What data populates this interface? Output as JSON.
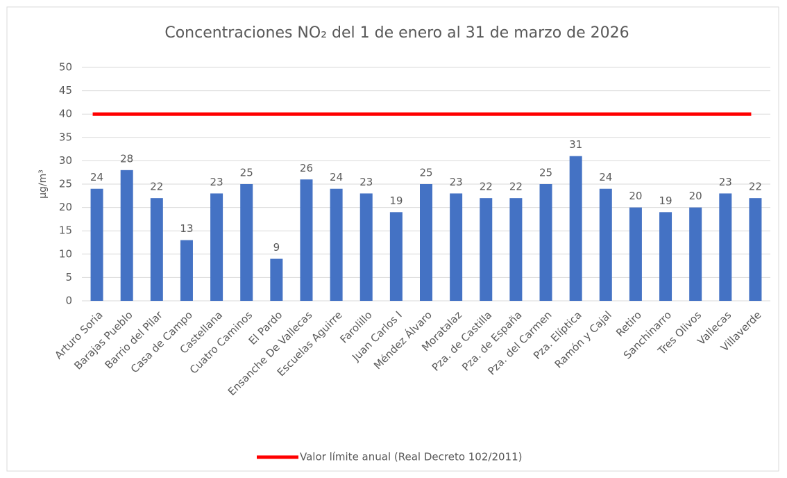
{
  "chart_data": {
    "type": "bar",
    "title": "Concentraciones NO₂ del 1 de enero al 31 de marzo de 2026",
    "y_label": "µg/m³",
    "categories": [
      "Arturo Soria",
      "Barajas Pueblo",
      "Barrio del Pilar",
      "Casa de Campo",
      "Castellana",
      "Cuatro Caminos",
      "El Pardo",
      "Ensanche De Vallecas",
      "Escuelas Aguirre",
      "Farolillo",
      "Juan Carlos I",
      "Méndez Álvaro",
      "Moratalaz",
      "Pza. de Castilla",
      "Pza. de España",
      "Pza. del Carmen",
      "Pza. Elíptica",
      "Ramón y Cajal",
      "Retiro",
      "Sanchinarro",
      "Tres Olivos",
      "Vallecas",
      "Villaverde"
    ],
    "values": [
      24,
      28,
      22,
      13,
      23,
      25,
      9,
      26,
      24,
      23,
      19,
      25,
      23,
      22,
      22,
      25,
      31,
      24,
      20,
      19,
      20,
      23,
      22
    ],
    "color": "#4472c4",
    "reference_line": {
      "name": "Valor límite anual (Real Decreto 102/2011)",
      "value": 40,
      "color": "#ff0000"
    },
    "ylim": [
      0,
      50
    ],
    "yticks": [
      0,
      5,
      10,
      15,
      20,
      25,
      30,
      35,
      40,
      45,
      50
    ],
    "grid": true,
    "legend": "bottom"
  }
}
